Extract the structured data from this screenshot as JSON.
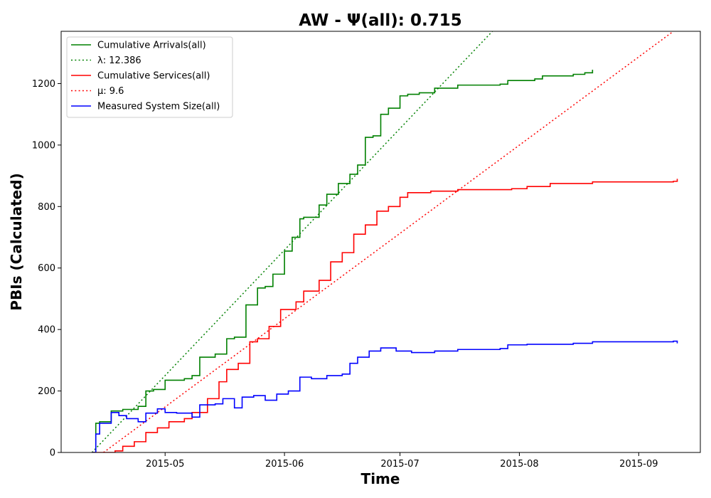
{
  "chart_data": {
    "type": "line",
    "title": "AW -  Ψ(all): 0.715",
    "xlabel": "Time",
    "ylabel": "PBIs (Calculated)",
    "xlim": [
      "2015-04-04",
      "2015-09-17"
    ],
    "ylim": [
      0,
      1370
    ],
    "x_ticks": [
      "2015-05",
      "2015-06",
      "2015-07",
      "2015-08",
      "2015-09"
    ],
    "y_ticks": [
      0,
      200,
      400,
      600,
      800,
      1000,
      1200
    ],
    "grid": false,
    "legend_position": "top-left",
    "series": [
      {
        "name": "Cumulative Arrivals(all)",
        "color": "#008000",
        "style": "solid",
        "x": [
          "2015-04-12",
          "2015-04-13",
          "2015-04-14",
          "2015-04-17",
          "2015-04-20",
          "2015-04-24",
          "2015-04-26",
          "2015-04-28",
          "2015-05-01",
          "2015-05-06",
          "2015-05-08",
          "2015-05-10",
          "2015-05-14",
          "2015-05-17",
          "2015-05-19",
          "2015-05-22",
          "2015-05-25",
          "2015-05-27",
          "2015-05-29",
          "2015-06-01",
          "2015-06-03",
          "2015-06-05",
          "2015-06-06",
          "2015-06-10",
          "2015-06-12",
          "2015-06-15",
          "2015-06-18",
          "2015-06-20",
          "2015-06-22",
          "2015-06-24",
          "2015-06-26",
          "2015-06-28",
          "2015-07-01",
          "2015-07-03",
          "2015-07-06",
          "2015-07-10",
          "2015-07-16",
          "2015-07-27",
          "2015-07-29",
          "2015-08-05",
          "2015-08-07",
          "2015-08-15",
          "2015-08-18",
          "2015-08-20"
        ],
        "values": [
          0,
          95,
          100,
          135,
          140,
          150,
          200,
          205,
          235,
          240,
          250,
          310,
          320,
          370,
          375,
          480,
          535,
          540,
          580,
          655,
          700,
          760,
          765,
          805,
          840,
          875,
          905,
          935,
          1025,
          1030,
          1100,
          1120,
          1160,
          1165,
          1170,
          1185,
          1195,
          1198,
          1210,
          1215,
          1225,
          1230,
          1235,
          1245
        ]
      },
      {
        "name": "λ: 12.386",
        "color": "#008000",
        "style": "dotted",
        "x": [
          "2015-04-12",
          "2015-07-25"
        ],
        "values": [
          0,
          1370
        ]
      },
      {
        "name": "Cumulative Services(all)",
        "color": "#ff0000",
        "style": "solid",
        "x": [
          "2015-04-12",
          "2015-04-18",
          "2015-04-20",
          "2015-04-23",
          "2015-04-26",
          "2015-04-29",
          "2015-05-02",
          "2015-05-06",
          "2015-05-08",
          "2015-05-12",
          "2015-05-15",
          "2015-05-17",
          "2015-05-20",
          "2015-05-23",
          "2015-05-25",
          "2015-05-28",
          "2015-05-31",
          "2015-06-04",
          "2015-06-06",
          "2015-06-10",
          "2015-06-13",
          "2015-06-16",
          "2015-06-19",
          "2015-06-22",
          "2015-06-25",
          "2015-06-28",
          "2015-07-01",
          "2015-07-03",
          "2015-07-09",
          "2015-07-16",
          "2015-07-30",
          "2015-08-03",
          "2015-08-09",
          "2015-08-20",
          "2015-09-10",
          "2015-09-11"
        ],
        "values": [
          0,
          5,
          20,
          35,
          65,
          80,
          100,
          110,
          130,
          175,
          230,
          270,
          290,
          360,
          370,
          410,
          465,
          490,
          525,
          560,
          620,
          650,
          710,
          740,
          785,
          800,
          830,
          845,
          850,
          855,
          858,
          865,
          875,
          880,
          882,
          890
        ]
      },
      {
        "name": "μ: 9.6",
        "color": "#ff0000",
        "style": "dotted",
        "x": [
          "2015-04-15",
          "2015-09-10"
        ],
        "values": [
          0,
          1370
        ]
      },
      {
        "name": "Measured System Size(all)",
        "color": "#0000ff",
        "style": "solid",
        "x": [
          "2015-04-12",
          "2015-04-13",
          "2015-04-14",
          "2015-04-17",
          "2015-04-19",
          "2015-04-21",
          "2015-04-24",
          "2015-04-26",
          "2015-04-29",
          "2015-05-01",
          "2015-05-04",
          "2015-05-08",
          "2015-05-10",
          "2015-05-14",
          "2015-05-16",
          "2015-05-19",
          "2015-05-21",
          "2015-05-24",
          "2015-05-27",
          "2015-05-30",
          "2015-06-02",
          "2015-06-05",
          "2015-06-08",
          "2015-06-12",
          "2015-06-16",
          "2015-06-18",
          "2015-06-20",
          "2015-06-23",
          "2015-06-26",
          "2015-06-30",
          "2015-07-04",
          "2015-07-10",
          "2015-07-16",
          "2015-07-27",
          "2015-07-29",
          "2015-08-03",
          "2015-08-15",
          "2015-08-20",
          "2015-09-10",
          "2015-09-11"
        ],
        "values": [
          0,
          60,
          95,
          130,
          120,
          110,
          100,
          128,
          142,
          130,
          128,
          115,
          155,
          158,
          175,
          145,
          180,
          185,
          170,
          190,
          200,
          245,
          240,
          250,
          255,
          290,
          310,
          330,
          340,
          330,
          325,
          330,
          335,
          338,
          350,
          352,
          355,
          360,
          362,
          355
        ]
      }
    ]
  }
}
